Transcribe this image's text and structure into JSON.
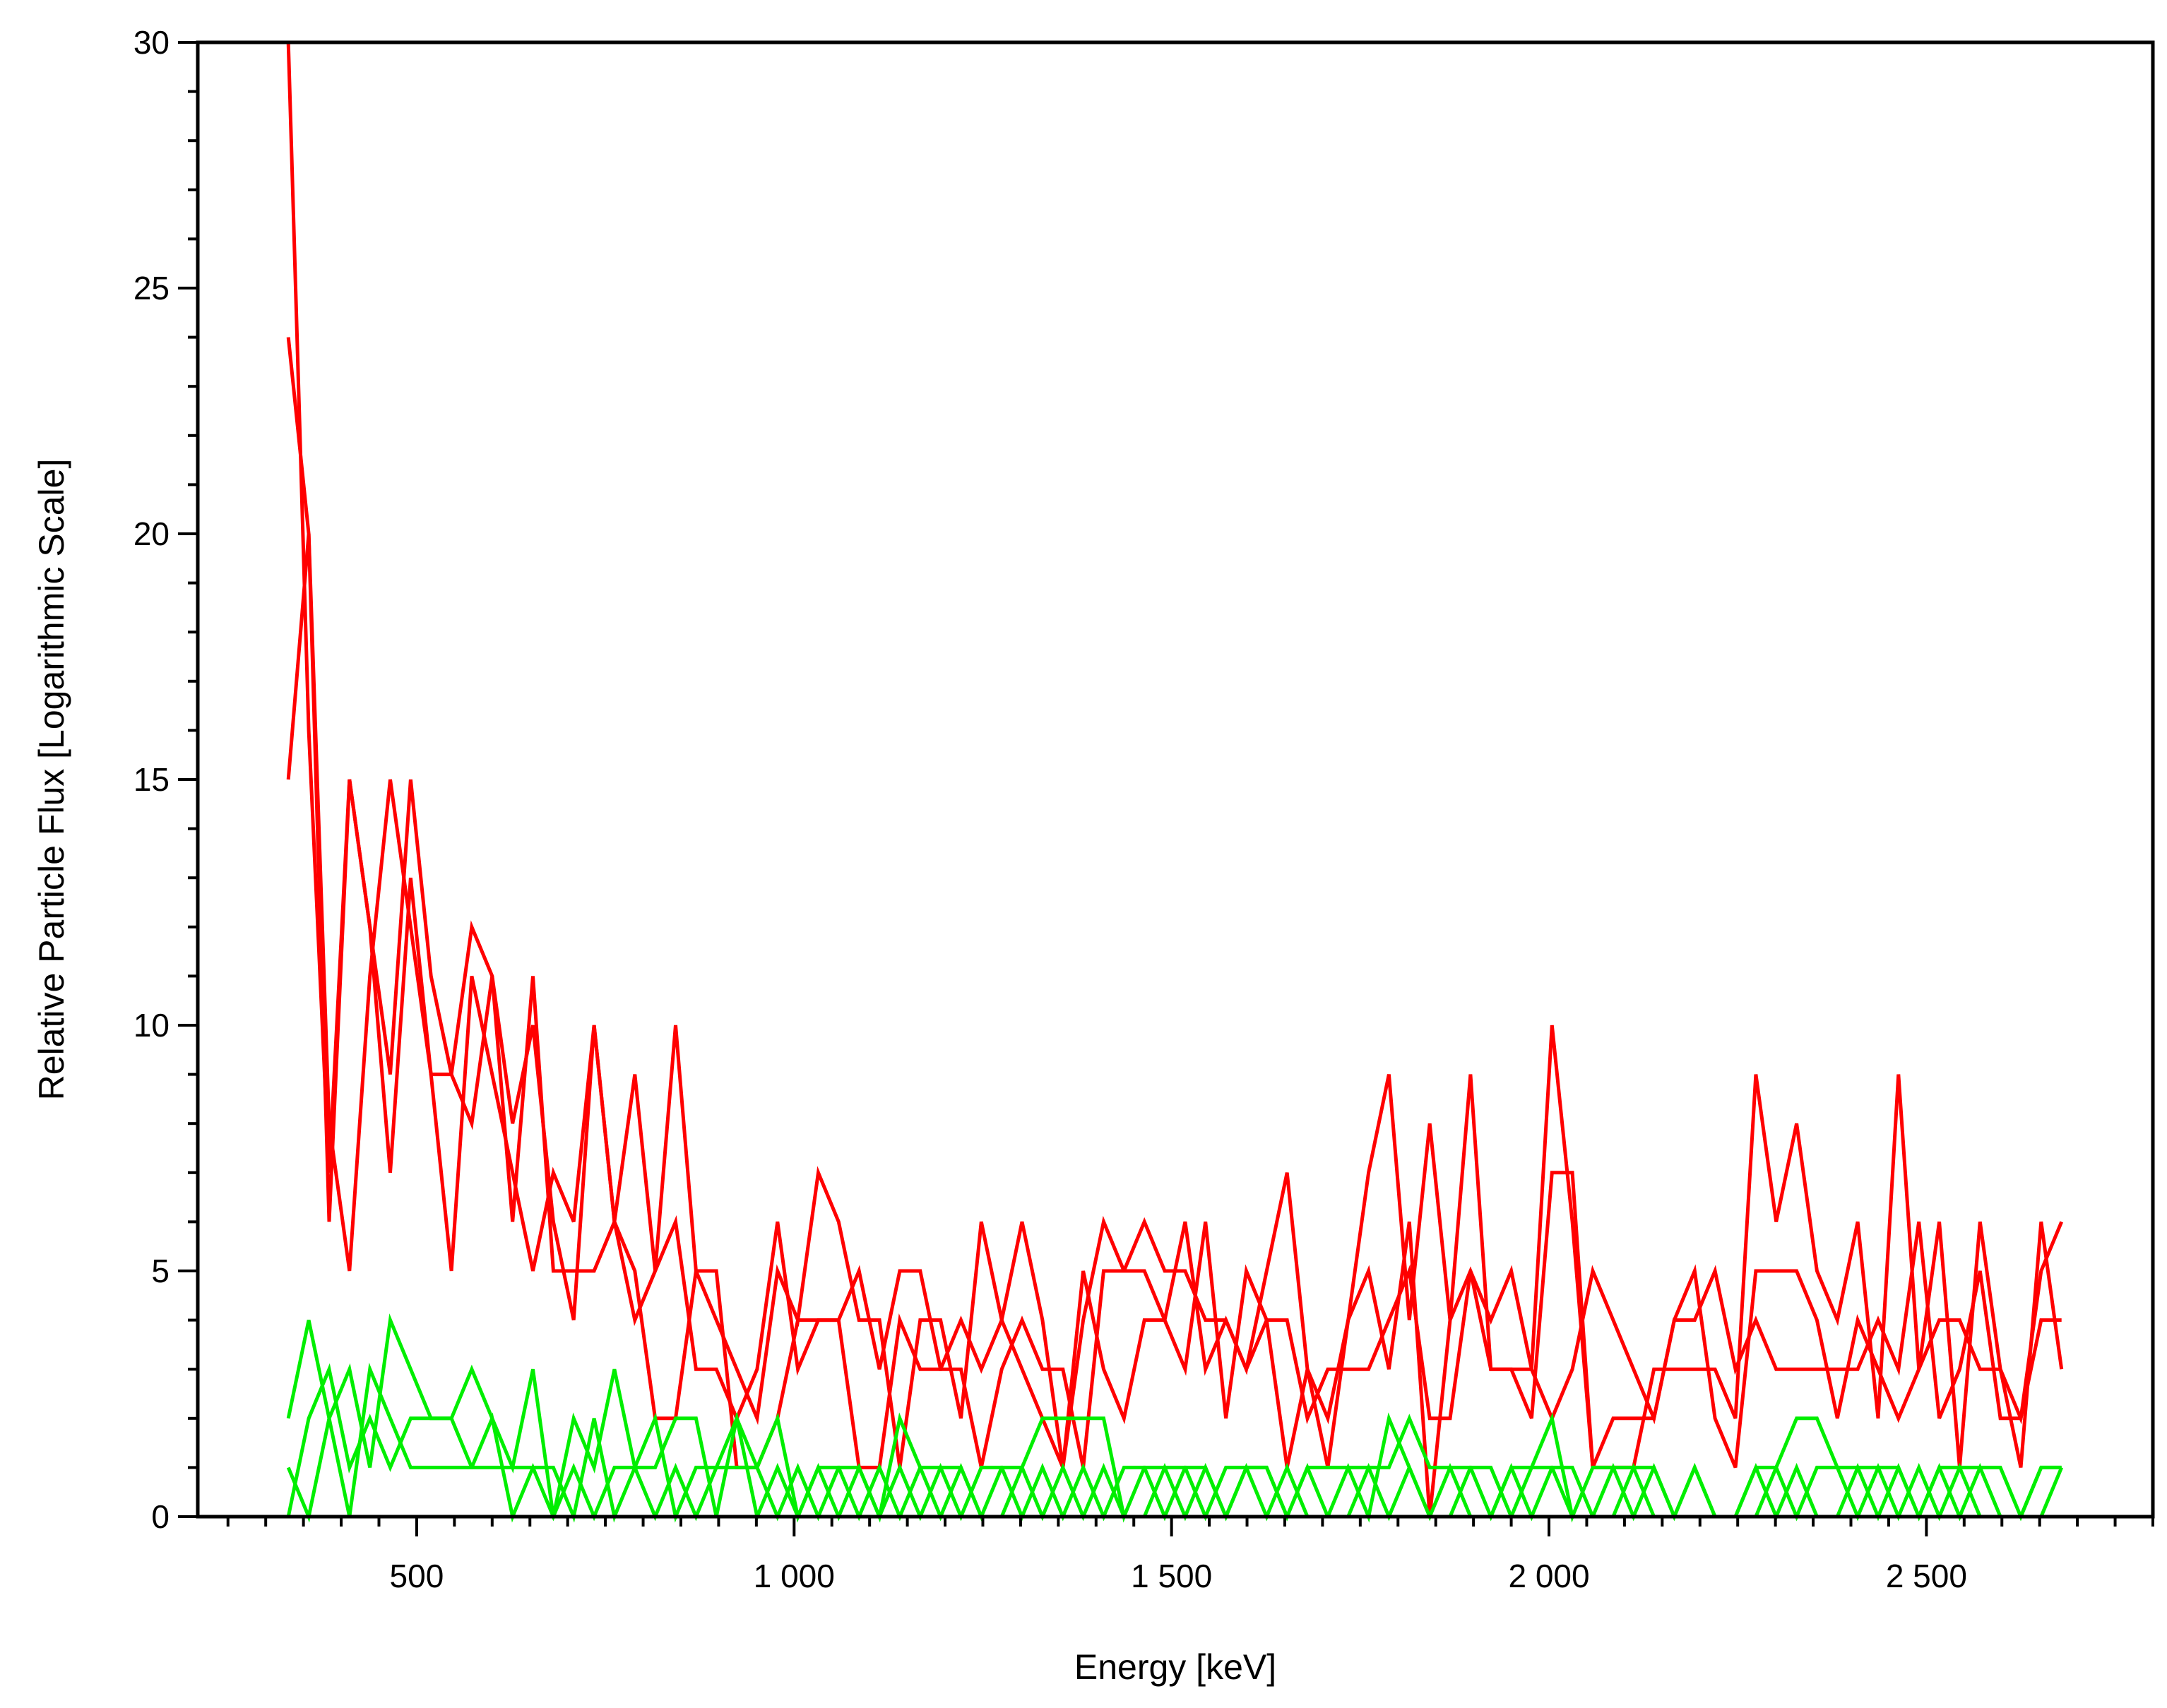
{
  "colors": {
    "background": "#ffffff",
    "axes": "#000000",
    "red_series": "#ff0000",
    "green_series": "#00ee00"
  },
  "chart_data": {
    "type": "line",
    "title": "",
    "xlabel": "Energy [keV]",
    "ylabel": "Relative Particle Flux [Logarithmic Scale]",
    "xlim": [
      210,
      2800
    ],
    "ylim": [
      0,
      30
    ],
    "grid": false,
    "legend": "none",
    "x_ticks": [
      {
        "value": 500,
        "label": "500"
      },
      {
        "value": 1000,
        "label": "1 000"
      },
      {
        "value": 1500,
        "label": "1 500"
      },
      {
        "value": 2000,
        "label": "2 000"
      },
      {
        "value": 2500,
        "label": "2 500"
      }
    ],
    "y_ticks": [
      {
        "value": 0,
        "label": "0"
      },
      {
        "value": 5,
        "label": "5"
      },
      {
        "value": 10,
        "label": "10"
      },
      {
        "value": 15,
        "label": "15"
      },
      {
        "value": 20,
        "label": "20"
      },
      {
        "value": 25,
        "label": "25"
      },
      {
        "value": 30,
        "label": "30"
      }
    ],
    "x_minor_step": 50,
    "y_minor_step": 1,
    "x": [
      330,
      357,
      384,
      411,
      438,
      465,
      492,
      519,
      546,
      573,
      600,
      627,
      654,
      681,
      708,
      735,
      762,
      789,
      816,
      843,
      870,
      897,
      924,
      951,
      978,
      1005,
      1032,
      1059,
      1086,
      1113,
      1140,
      1167,
      1194,
      1221,
      1248,
      1275,
      1302,
      1329,
      1356,
      1383,
      1410,
      1437,
      1464,
      1491,
      1518,
      1545,
      1572,
      1599,
      1626,
      1653,
      1680,
      1707,
      1734,
      1761,
      1788,
      1815,
      1842,
      1869,
      1896,
      1923,
      1950,
      1977,
      2004,
      2031,
      2058,
      2085,
      2112,
      2139,
      2166,
      2193,
      2220,
      2247,
      2274,
      2301,
      2328,
      2355,
      2382,
      2409,
      2436,
      2463,
      2490,
      2517,
      2544,
      2571,
      2598,
      2625,
      2652,
      2679
    ],
    "series": [
      {
        "color": "#ff0000",
        "values": [
          30,
          16,
          7,
          15,
          12,
          9,
          15,
          11,
          9,
          12,
          11,
          6,
          11,
          5,
          5,
          5,
          6,
          5,
          2,
          2,
          5,
          5,
          1,
          1,
          2,
          4,
          4,
          4,
          5,
          3,
          5,
          5,
          3,
          3,
          1,
          3,
          4,
          3,
          3,
          1,
          5,
          5,
          6,
          5,
          5,
          4,
          4,
          3,
          4,
          4,
          2,
          3,
          3,
          3,
          4,
          5,
          2,
          2,
          5,
          3,
          3,
          2,
          7,
          7,
          1,
          2,
          2,
          2,
          4,
          5,
          2,
          1,
          5,
          5,
          5,
          4,
          2,
          4,
          3,
          2,
          3,
          4,
          4,
          3,
          3,
          2,
          4,
          4
        ]
      },
      {
        "color": "#ff0000",
        "values": [
          24,
          20,
          8,
          5,
          11,
          15,
          12,
          9,
          9,
          8,
          11,
          8,
          10,
          6,
          4,
          10,
          6,
          9,
          5,
          10,
          5,
          4,
          3,
          2,
          5,
          4,
          7,
          6,
          4,
          4,
          1,
          4,
          4,
          2,
          6,
          4,
          6,
          4,
          1,
          4,
          6,
          5,
          5,
          4,
          6,
          3,
          4,
          3,
          5,
          7,
          3,
          1,
          4,
          7,
          9,
          4,
          8,
          4,
          9,
          3,
          3,
          3,
          10,
          6,
          1,
          1,
          1,
          3,
          3,
          3,
          3,
          2,
          9,
          6,
          8,
          5,
          4,
          6,
          2,
          9,
          3,
          6,
          1,
          6,
          3,
          1,
          6,
          3
        ]
      },
      {
        "color": "#ff0000",
        "values": [
          15,
          20,
          6,
          15,
          12,
          7,
          13,
          9,
          5,
          11,
          9,
          7,
          5,
          7,
          6,
          10,
          6,
          4,
          5,
          6,
          3,
          3,
          2,
          3,
          6,
          3,
          4,
          4,
          1,
          1,
          4,
          3,
          3,
          4,
          3,
          4,
          3,
          2,
          1,
          5,
          3,
          2,
          4,
          4,
          3,
          6,
          2,
          5,
          4,
          1,
          3,
          2,
          4,
          5,
          3,
          6,
          0,
          4,
          5,
          4,
          5,
          3,
          2,
          3,
          5,
          4,
          3,
          2,
          4,
          4,
          5,
          3,
          4,
          3,
          3,
          3,
          3,
          3,
          4,
          3,
          6,
          2,
          3,
          5,
          2,
          2,
          5,
          6
        ]
      },
      {
        "color": "#00ee00",
        "values": [
          2,
          4,
          2,
          3,
          1,
          4,
          3,
          2,
          2,
          3,
          2,
          1,
          3,
          0,
          2,
          1,
          3,
          1,
          1,
          2,
          2,
          0,
          2,
          1,
          2,
          0,
          1,
          0,
          1,
          0,
          2,
          1,
          1,
          1,
          0,
          1,
          1,
          2,
          2,
          2,
          2,
          0,
          1,
          1,
          1,
          0,
          1,
          1,
          1,
          0,
          1,
          1,
          1,
          1,
          1,
          2,
          1,
          1,
          1,
          0,
          1,
          1,
          2,
          0,
          1,
          1,
          1,
          1,
          0,
          1,
          0,
          0,
          1,
          1,
          2,
          2,
          1,
          1,
          1,
          1,
          0,
          1,
          1,
          1,
          1,
          0,
          1,
          1
        ]
      },
      {
        "color": "#00ee00",
        "values": [
          0,
          2,
          3,
          1,
          2,
          1,
          2,
          2,
          2,
          1,
          1,
          1,
          1,
          1,
          0,
          2,
          0,
          1,
          2,
          0,
          1,
          1,
          1,
          1,
          0,
          1,
          0,
          1,
          1,
          0,
          1,
          0,
          1,
          0,
          1,
          1,
          0,
          1,
          0,
          1,
          0,
          1,
          1,
          0,
          1,
          1,
          0,
          1,
          0,
          1,
          0,
          0,
          1,
          0,
          2,
          1,
          0,
          1,
          0,
          0,
          1,
          0,
          1,
          1,
          0,
          0,
          1,
          0,
          0,
          1,
          0,
          0,
          0,
          1,
          0,
          1,
          1,
          0,
          1,
          0,
          1,
          0,
          1,
          0,
          0,
          0,
          1,
          1
        ]
      },
      {
        "color": "#00ee00",
        "values": [
          1,
          0,
          2,
          0,
          3,
          2,
          1,
          1,
          1,
          1,
          2,
          0,
          1,
          0,
          1,
          0,
          1,
          1,
          0,
          1,
          0,
          1,
          2,
          0,
          1,
          0,
          1,
          1,
          0,
          1,
          0,
          1,
          0,
          1,
          0,
          0,
          1,
          0,
          1,
          0,
          1,
          0,
          0,
          1,
          0,
          1,
          0,
          1,
          1,
          0,
          1,
          0,
          0,
          1,
          0,
          1,
          0,
          0,
          1,
          1,
          0,
          1,
          1,
          0,
          0,
          1,
          0,
          1,
          0,
          0,
          0,
          0,
          1,
          0,
          1,
          0,
          0,
          1,
          0,
          1,
          0,
          1,
          0,
          1,
          0,
          0,
          0,
          1
        ]
      }
    ]
  }
}
